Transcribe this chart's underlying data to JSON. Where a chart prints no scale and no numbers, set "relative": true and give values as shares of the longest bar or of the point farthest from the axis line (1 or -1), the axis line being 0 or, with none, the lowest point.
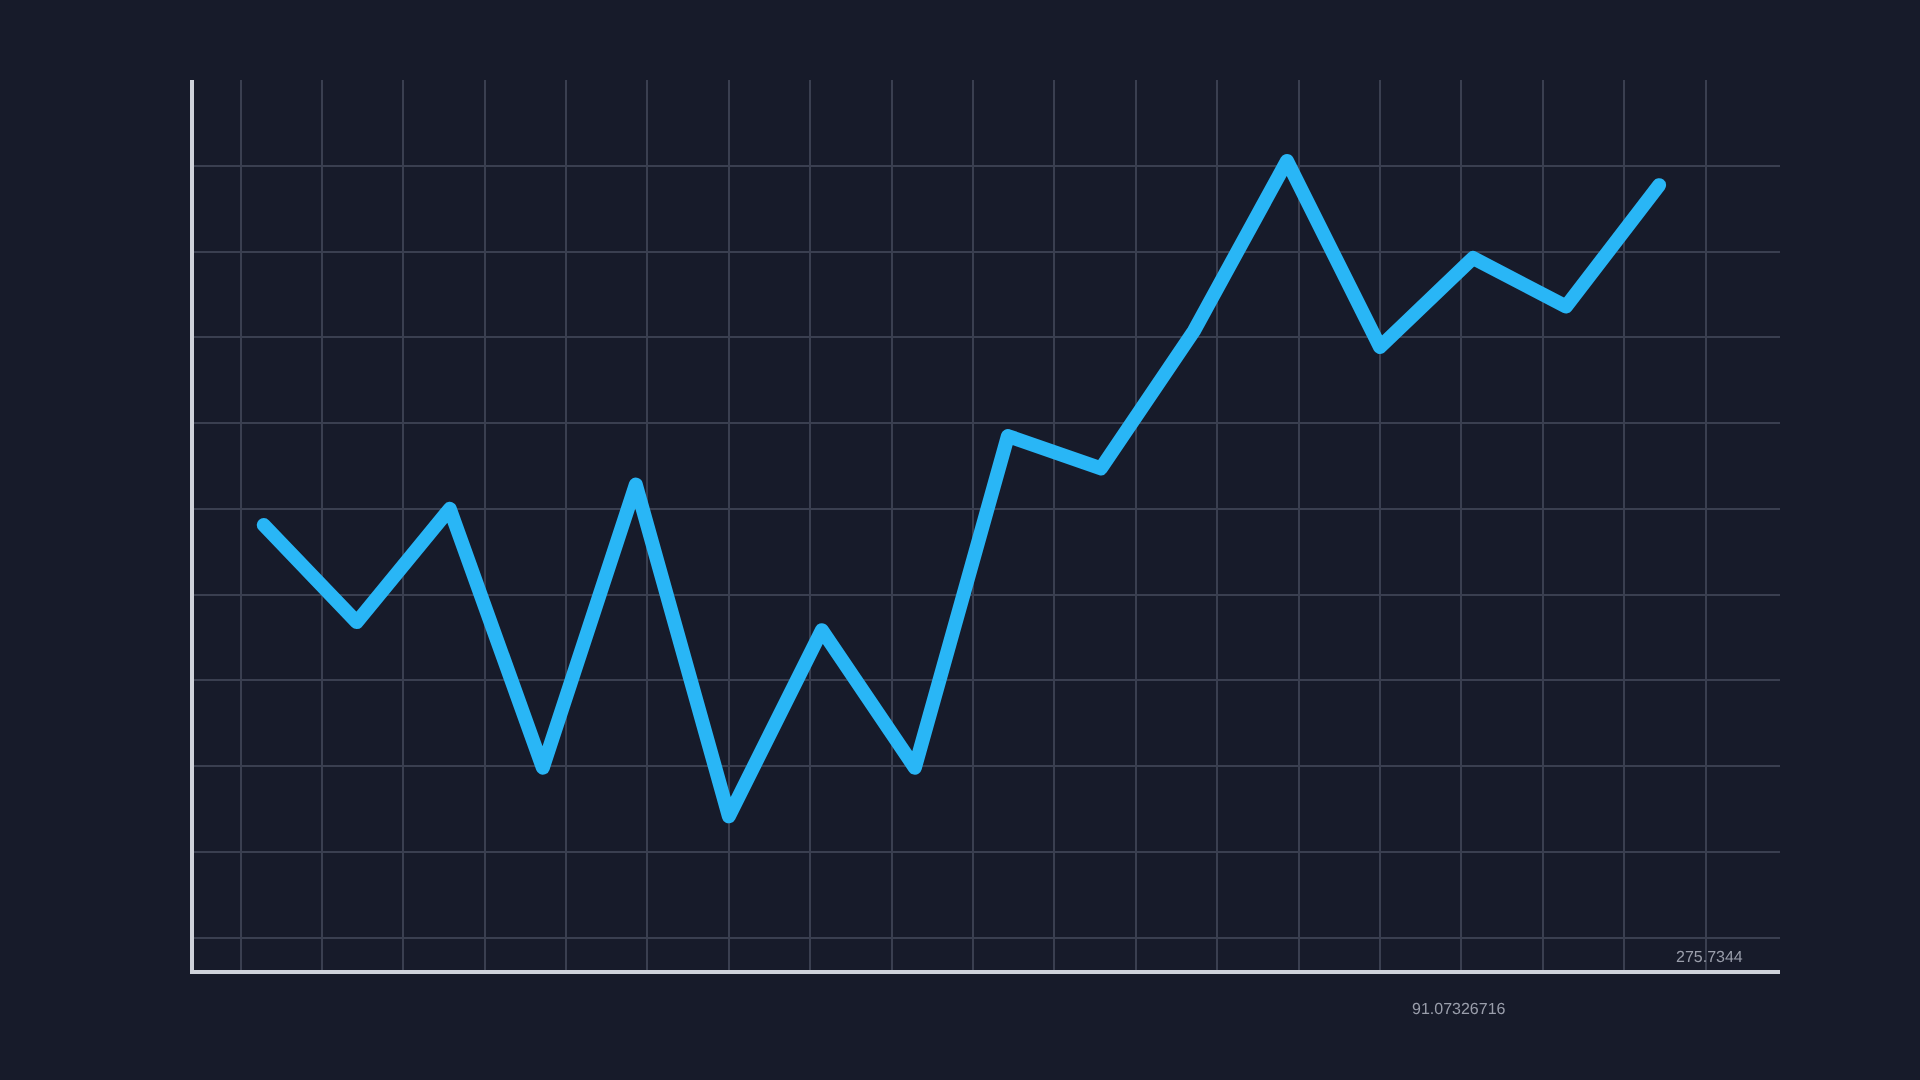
{
  "chart_data": {
    "type": "line",
    "relative": true,
    "categories": [
      null,
      null,
      null,
      null,
      null,
      null,
      null,
      null,
      null,
      null,
      null,
      null,
      null,
      null,
      null,
      null
    ],
    "series": [
      {
        "color": "#29b6f6",
        "values": [
          0.55,
          0.43,
          0.57,
          0.25,
          0.6,
          0.19,
          0.42,
          0.25,
          0.66,
          0.62,
          0.79,
          1,
          0.77,
          0.88,
          0.82,
          0.97
        ]
      }
    ],
    "annotations": [
      "91.07326716",
      "275.7344"
    ],
    "grid": true,
    "line_style": "solid",
    "tick_labels": false,
    "legend": false
  }
}
